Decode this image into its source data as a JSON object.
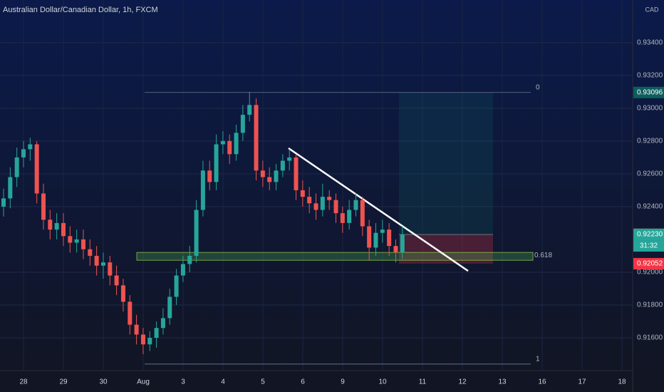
{
  "chart_data": {
    "type": "candlestick",
    "title": "Australian Dollar/Canadian Dollar, 1h, FXCM",
    "currency": "CAD",
    "categories": [
      "28",
      "29",
      "30",
      "Aug",
      "3",
      "4",
      "5",
      "6",
      "9",
      "10",
      "11",
      "12",
      "13",
      "16",
      "17",
      "18"
    ],
    "ylim": [
      0.914,
      0.9366
    ],
    "yticks": [
      {
        "value": 0.916,
        "label": "0.91600"
      },
      {
        "value": 0.918,
        "label": "0.91800"
      },
      {
        "value": 0.92,
        "label": "0.92000"
      },
      {
        "value": 0.924,
        "label": "0.92400"
      },
      {
        "value": 0.926,
        "label": "0.92600"
      },
      {
        "value": 0.928,
        "label": "0.92800"
      },
      {
        "value": 0.93,
        "label": "0.93000"
      },
      {
        "value": 0.932,
        "label": "0.93200"
      },
      {
        "value": 0.934,
        "label": "0.93400"
      }
    ],
    "grid": true,
    "up_color": "#26a69a",
    "down_color": "#ef5350",
    "open": [
      0.924,
      0.9245,
      0.9258,
      0.927,
      0.9275,
      0.9278,
      0.9248,
      0.9232,
      0.9226,
      0.923,
      0.9222,
      0.9218,
      0.922,
      0.9214,
      0.921,
      0.9204,
      0.9206,
      0.9198,
      0.9192,
      0.9182,
      0.9168,
      0.9162,
      0.9156,
      0.916,
      0.9166,
      0.9172,
      0.9185,
      0.9198,
      0.9205,
      0.921,
      0.9238,
      0.9262,
      0.9255,
      0.9278,
      0.928,
      0.9272,
      0.9285,
      0.9296,
      0.9302,
      0.9262,
      0.9258,
      0.9255,
      0.9262,
      0.9268,
      0.927,
      0.925,
      0.9246,
      0.9242,
      0.9238,
      0.9246,
      0.9244,
      0.9236,
      0.923,
      0.9238,
      0.9244,
      0.9228,
      0.9215,
      0.9224,
      0.9226,
      0.9216,
      0.9212
    ],
    "high": [
      0.9251,
      0.9264,
      0.9276,
      0.928,
      0.9282,
      0.928,
      0.9254,
      0.9238,
      0.9236,
      0.9236,
      0.9228,
      0.9226,
      0.9226,
      0.922,
      0.9216,
      0.9212,
      0.921,
      0.9204,
      0.9196,
      0.9186,
      0.9174,
      0.9166,
      0.9164,
      0.917,
      0.9178,
      0.919,
      0.9202,
      0.921,
      0.9216,
      0.9244,
      0.9268,
      0.9268,
      0.9284,
      0.9286,
      0.9284,
      0.929,
      0.9302,
      0.931,
      0.9306,
      0.9268,
      0.9264,
      0.9266,
      0.9272,
      0.9275,
      0.9272,
      0.9256,
      0.9252,
      0.9248,
      0.9254,
      0.925,
      0.9248,
      0.924,
      0.9244,
      0.9248,
      0.9246,
      0.9232,
      0.923,
      0.9232,
      0.923,
      0.922,
      0.9228
    ],
    "low": [
      0.9234,
      0.9239,
      0.9252,
      0.9264,
      0.9268,
      0.9242,
      0.9226,
      0.922,
      0.922,
      0.9216,
      0.9212,
      0.9212,
      0.9208,
      0.9204,
      0.9198,
      0.9196,
      0.9192,
      0.9186,
      0.9176,
      0.9162,
      0.9156,
      0.915,
      0.9152,
      0.9154,
      0.9162,
      0.9168,
      0.918,
      0.9194,
      0.92,
      0.9206,
      0.9234,
      0.925,
      0.925,
      0.9272,
      0.9266,
      0.9268,
      0.928,
      0.9292,
      0.9256,
      0.9252,
      0.925,
      0.925,
      0.9258,
      0.9262,
      0.9244,
      0.924,
      0.9236,
      0.9232,
      0.9234,
      0.9238,
      0.923,
      0.9224,
      0.9226,
      0.9234,
      0.9222,
      0.9207,
      0.921,
      0.9218,
      0.921,
      0.9206,
      0.9208
    ],
    "close": [
      0.9245,
      0.9258,
      0.927,
      0.9275,
      0.9278,
      0.9248,
      0.9232,
      0.9226,
      0.923,
      0.9222,
      0.9218,
      0.922,
      0.9214,
      0.921,
      0.9204,
      0.9206,
      0.9198,
      0.9192,
      0.9182,
      0.9168,
      0.9162,
      0.9156,
      0.916,
      0.9166,
      0.9172,
      0.9185,
      0.9198,
      0.9205,
      0.921,
      0.9238,
      0.9262,
      0.9255,
      0.9278,
      0.928,
      0.9272,
      0.9285,
      0.9296,
      0.9302,
      0.9262,
      0.9258,
      0.9255,
      0.9262,
      0.9268,
      0.927,
      0.925,
      0.9246,
      0.9242,
      0.9238,
      0.9246,
      0.9244,
      0.9236,
      0.923,
      0.9238,
      0.9244,
      0.9228,
      0.9215,
      0.9224,
      0.9226,
      0.9216,
      0.9212,
      0.9223
    ],
    "fib": [
      {
        "level": 0,
        "price": 0.93096
      },
      {
        "level": 1,
        "price": 0.9144
      },
      {
        "level": 0.618,
        "price": 0.92073
      }
    ],
    "trendline": [
      0.92756,
      0.92008
    ],
    "position": {
      "target": 0.93096,
      "entry": 0.9223,
      "stop": 0.92052
    },
    "price_tags": [
      {
        "value": 0.93096,
        "color": "#0c5f5c"
      },
      {
        "value": 0.92234,
        "color": "#3a3e4a"
      },
      {
        "value": 0.9223,
        "label": "0.92230",
        "color": "#26a69a",
        "countdown": "31:32"
      },
      {
        "value": 0.92052,
        "label": "0.92052",
        "color": "#f23645"
      }
    ]
  }
}
